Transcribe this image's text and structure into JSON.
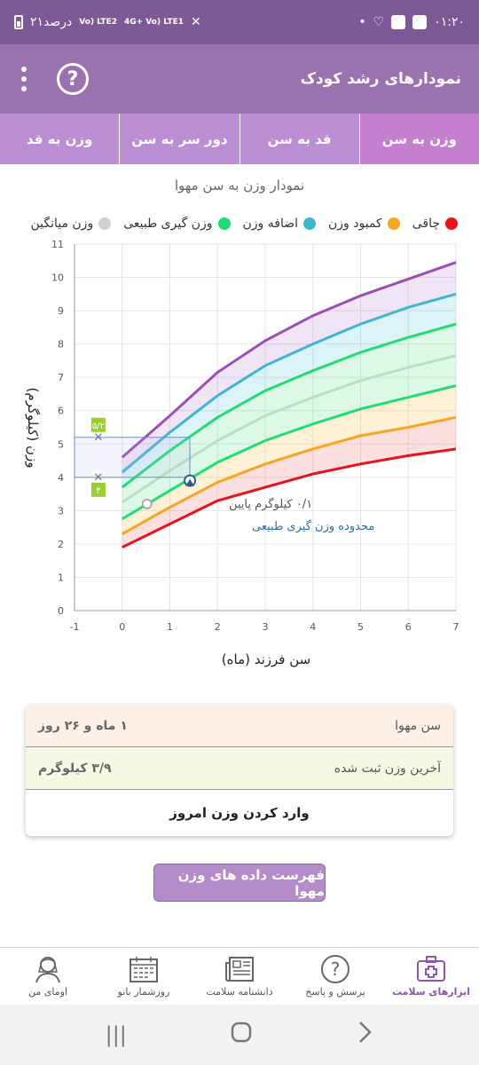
{
  "status_bar": {
    "time": "۰۱:۲۰",
    "battery_text": "۲۱درصد",
    "net1": "Vo) LTE2",
    "net2": "4G+ Vo) LTE1"
  },
  "header": {
    "title": "نمودارهای رشد کودک",
    "help_label": "?"
  },
  "tabs": [
    {
      "label": "وزن به سن",
      "active": true
    },
    {
      "label": "قد به سن",
      "active": false
    },
    {
      "label": "دور سر به سن",
      "active": false
    },
    {
      "label": "وزن به قد",
      "active": false
    }
  ],
  "chart_title": "نمودار وزن به سن مهوا",
  "legend": [
    {
      "label": "چاقی",
      "color": "#e8121c"
    },
    {
      "label": "کمبود وزن",
      "color": "#f5a623"
    },
    {
      "label": "اضافه وزن",
      "color": "#3fb6cf"
    },
    {
      "label": "وزن گیری طبیعی",
      "color": "#1fdc73"
    },
    {
      "label": "وزن میانگین",
      "color": "#d0d0d0"
    }
  ],
  "chart_data": {
    "type": "line",
    "xlabel": "سن فرزند (ماه)",
    "ylabel": "وزن (کیلوگرم)",
    "xlim": [
      -1,
      7
    ],
    "ylim": [
      0,
      11
    ],
    "xticks": [
      "-1",
      "0",
      "1",
      "2",
      "3",
      "4",
      "5",
      "6",
      "7"
    ],
    "yticks": [
      "0",
      "1",
      "2",
      "3",
      "4",
      "5",
      "6",
      "7",
      "8",
      "9",
      "10",
      "11"
    ],
    "x": [
      0,
      1,
      2,
      3,
      4,
      5,
      6,
      7
    ],
    "series": [
      {
        "key": "p1",
        "color": "#e8121c",
        "values": [
          1.9,
          2.6,
          3.3,
          3.7,
          4.1,
          4.4,
          4.65,
          4.85
        ]
      },
      {
        "key": "p2",
        "color": "#f5a623",
        "values": [
          2.3,
          3.1,
          3.85,
          4.4,
          4.85,
          5.25,
          5.5,
          5.8
        ]
      },
      {
        "key": "p3",
        "color": "#1fdc73",
        "values": [
          2.75,
          3.6,
          4.45,
          5.1,
          5.6,
          6.05,
          6.4,
          6.75
        ]
      },
      {
        "key": "p4",
        "color": "#bcdcc6",
        "values": [
          3.25,
          4.2,
          5.1,
          5.85,
          6.4,
          6.9,
          7.3,
          7.65
        ]
      },
      {
        "key": "p5",
        "color": "#1fdc73",
        "values": [
          3.7,
          4.8,
          5.8,
          6.6,
          7.2,
          7.75,
          8.2,
          8.6
        ]
      },
      {
        "key": "p6",
        "color": "#3fb6cf",
        "values": [
          4.15,
          5.35,
          6.45,
          7.35,
          8.0,
          8.6,
          9.1,
          9.5
        ]
      },
      {
        "key": "p7",
        "color": "#9b4fb5",
        "values": [
          4.6,
          5.85,
          7.15,
          8.1,
          8.85,
          9.45,
          9.95,
          10.45
        ]
      }
    ],
    "range_box": {
      "x0": -1,
      "x1": 1.42,
      "y0": 4.0,
      "y1": 5.2
    },
    "range_labels": [
      {
        "text": "۵/۲",
        "x": -0.5,
        "y": 5.2
      },
      {
        "text": "۴",
        "x": -0.5,
        "y": 4.0
      }
    ],
    "child_point": {
      "x": 1.42,
      "y": 3.9
    },
    "circle_point": {
      "x": 0.52,
      "y": 3.2
    },
    "annotation_low": "۰/۱ کیلوگرم پایین",
    "annotation_range": "محدوده وزن گیری طبیعی"
  },
  "info": {
    "age_label": "سن مهوا",
    "age_value": "۱ ماه و ۲۶ روز",
    "weight_label": "آخرین وزن ثبت شده",
    "weight_value": "۳/۹ کیلوگرم",
    "enter_weight": "وارد کردن وزن امروز"
  },
  "list_button": "فهرست داده های وزن مهوا",
  "bottom_nav": [
    {
      "label": "ابزارهای سلامت",
      "icon": "health-kit-icon",
      "active": true
    },
    {
      "label": "پرسش و پاسخ",
      "icon": "question-icon",
      "active": false
    },
    {
      "label": "دانشنامه سلامت",
      "icon": "newspaper-icon",
      "active": false
    },
    {
      "label": "روزشمار بانو",
      "icon": "calendar-icon",
      "active": false
    },
    {
      "label": "اومای من",
      "icon": "woman-profile-icon",
      "active": false
    }
  ]
}
